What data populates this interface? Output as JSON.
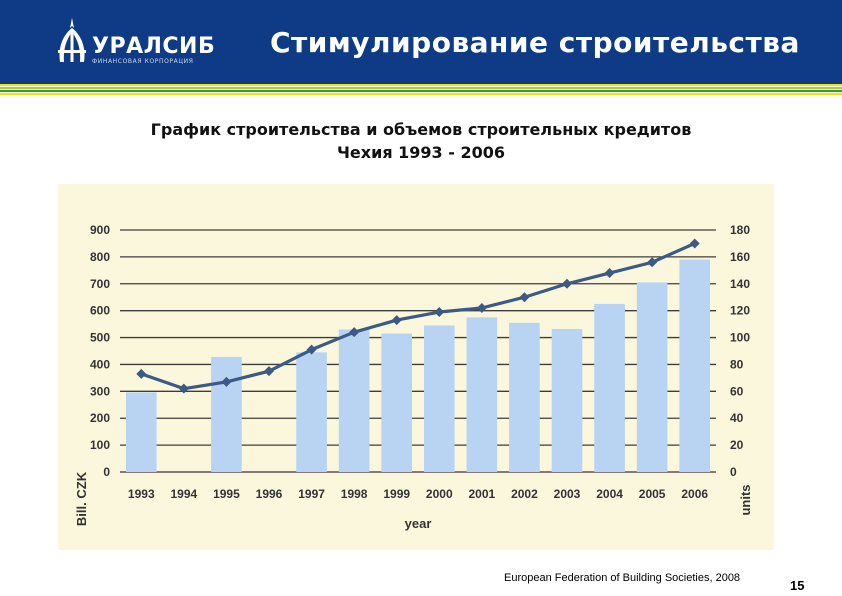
{
  "header": {
    "logo_text": "УРАЛСИБ",
    "logo_subtext": "ФИНАНСОВАЯ КОРПОРАЦИЯ",
    "title": "Стимулирование строительства",
    "background_color": "#0e3a86",
    "stripe_colors": [
      "#f3e500",
      "#a6cf3a",
      "#3a9b2d",
      "#f3e500"
    ]
  },
  "subtitle": {
    "line1": "График строительства и объемов строительных кредитов",
    "line2": "Чехия 1993 - 2006"
  },
  "chart_data": {
    "type": "bar",
    "categories": [
      "1993",
      "1994",
      "1995",
      "1996",
      "1997",
      "1998",
      "1999",
      "2000",
      "2001",
      "2002",
      "2003",
      "2004",
      "2005",
      "2006"
    ],
    "series": [
      {
        "type": "bar",
        "axis": "left",
        "color": "#b9d3f3",
        "values": [
          296,
          0,
          428,
          0,
          445,
          530,
          515,
          545,
          575,
          555,
          532,
          625,
          705,
          790
        ]
      },
      {
        "type": "line",
        "axis": "right",
        "color": "#3d5a86",
        "values": [
          73,
          62,
          67,
          75,
          91,
          104,
          113,
          119,
          122,
          130,
          140,
          148,
          156,
          170
        ]
      }
    ],
    "xlabel": "year",
    "ylabel": "Bill. CZK",
    "y2label": "units",
    "ylim": [
      0,
      900
    ],
    "y2lim": [
      0,
      180
    ],
    "yticks": [
      "0",
      "100",
      "200",
      "300",
      "400",
      "500",
      "600",
      "700",
      "800",
      "900"
    ],
    "y2ticks": [
      "0",
      "20",
      "40",
      "60",
      "80",
      "100",
      "120",
      "140",
      "160",
      "180"
    ],
    "grid": true,
    "legend": "none"
  },
  "footer": {
    "source": "European Federation of Building Societies, 2008",
    "page_number": "15"
  }
}
